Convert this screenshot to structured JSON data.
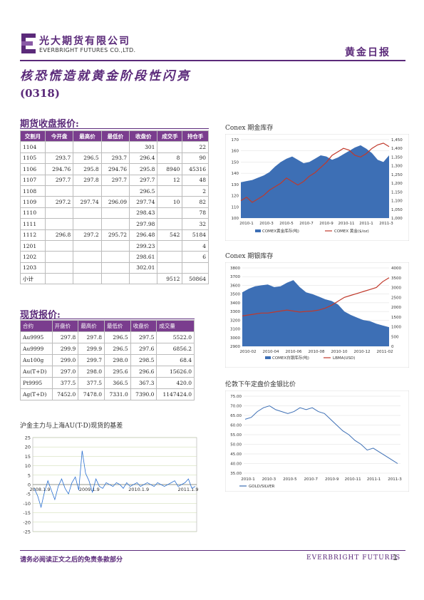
{
  "header": {
    "company_cn": "光大期货有限公司",
    "company_en": "EVERBRIGHT FUTURES CO.,LTD.",
    "report_name": "黄金日报",
    "colors": {
      "brand": "#5b2a7a",
      "table_head": "#7a3d8e"
    }
  },
  "title": "核恐慌造就黄金阶段性闪亮",
  "subtitle": "(0318)",
  "futures": {
    "title": "期货收盘报价:",
    "columns": [
      "交割月",
      "今开盘",
      "最高价",
      "最低价",
      "收盘价",
      "成交手",
      "持仓手"
    ],
    "rows": [
      [
        "1104",
        "",
        "",
        "",
        "301",
        "",
        "22"
      ],
      [
        "1105",
        "293.7",
        "296.5",
        "293.7",
        "296.4",
        "8",
        "90"
      ],
      [
        "1106",
        "294.76",
        "295.8",
        "294.76",
        "295.8",
        "8940",
        "45316"
      ],
      [
        "1107",
        "297.7",
        "297.8",
        "297.7",
        "297.7",
        "12",
        "48"
      ],
      [
        "1108",
        "",
        "",
        "",
        "296.5",
        "",
        "2"
      ],
      [
        "1109",
        "297.2",
        "297.74",
        "296.09",
        "297.74",
        "10",
        "82"
      ],
      [
        "1110",
        "",
        "",
        "",
        "298.43",
        "",
        "78"
      ],
      [
        "1111",
        "",
        "",
        "",
        "297.98",
        "",
        "32"
      ],
      [
        "1112",
        "296.8",
        "297.2",
        "295.72",
        "296.48",
        "542",
        "5184"
      ],
      [
        "1201",
        "",
        "",
        "",
        "299.23",
        "",
        "4"
      ],
      [
        "1202",
        "",
        "",
        "",
        "298.61",
        "",
        "6"
      ],
      [
        "1203",
        "",
        "",
        "",
        "302.01",
        "",
        ""
      ],
      [
        "小计",
        "",
        "",
        "",
        "",
        "9512",
        "50864"
      ]
    ]
  },
  "spot": {
    "title": "现货报价:",
    "columns": [
      "合约",
      "开盘价",
      "最高价",
      "最低价",
      "收盘价",
      "成交量"
    ],
    "rows": [
      [
        "Au9995",
        "297.8",
        "297.8",
        "296.5",
        "297.5",
        "5522.0"
      ],
      [
        "Au9999",
        "299.9",
        "299.9",
        "296.5",
        "297.6",
        "6856.2"
      ],
      [
        "Au100g",
        "299.0",
        "299.7",
        "298.0",
        "298.5",
        "68.4"
      ],
      [
        "Au(T+D)",
        "297.0",
        "298.0",
        "295.6",
        "296.6",
        "15626.0"
      ],
      [
        "Pt9995",
        "377.5",
        "377.5",
        "366.5",
        "367.3",
        "420.0"
      ],
      [
        "Ag(T+D)",
        "7452.0",
        "7478.0",
        "7331.0",
        "7390.0",
        "1147424.0"
      ]
    ]
  },
  "charts": {
    "basis_title": "沪金主力与上海AU(T-D)现货的基差",
    "comex_gold_title": "Conex 期金库存",
    "comex_silver_title": "Conex 期银库存",
    "gold_silver_title": "伦敦下午定盘价金银比价"
  },
  "chart_data": [
    {
      "type": "line",
      "title": "沪金主力与上海AU(T-D)现货的基差",
      "ylim": [
        -25,
        25
      ],
      "yticks": [
        "25",
        "20",
        "15",
        "10",
        "5",
        "0",
        "-5",
        "-10",
        "-15",
        "-20",
        "-25"
      ],
      "xticks": [
        "2008.1.9",
        "2009.1.9",
        "2010.1.9",
        "2011.1.9"
      ],
      "series": [
        {
          "values": [
            -2,
            -6,
            -12,
            -4,
            2,
            -3,
            -8,
            -1,
            3,
            -2,
            -5,
            1,
            4,
            -3,
            18,
            6,
            2,
            -4,
            3,
            -1,
            -2,
            1,
            0,
            -1,
            1,
            0,
            -2,
            1,
            -1,
            0,
            1,
            -1,
            0,
            1,
            0,
            -1,
            1,
            0,
            -1,
            0,
            1,
            2,
            -1,
            0,
            1,
            3,
            -2,
            -1
          ]
        }
      ]
    },
    {
      "type": "area",
      "title": "Conex 期金库存",
      "ylim_left": [
        100,
        170
      ],
      "ylim_right": [
        1000,
        1450
      ],
      "yticks_left": [
        "170",
        "160",
        "150",
        "140",
        "130",
        "120",
        "110",
        "100"
      ],
      "yticks_right": [
        "1,450",
        "1,400",
        "1,350",
        "1,300",
        "1,250",
        "1,200",
        "1,150",
        "1,100",
        "1,050",
        "1,000"
      ],
      "xticks": [
        "2010-1",
        "2010-3",
        "2010-5",
        "2010-7",
        "2010-9",
        "2010-11",
        "2011-1",
        "2011-3"
      ],
      "series": [
        {
          "name": "COMEX黄金库存(吨)",
          "values": [
            132,
            133,
            134,
            136,
            138,
            141,
            146,
            150,
            153,
            155,
            152,
            149,
            150,
            153,
            156,
            155,
            152,
            154,
            157,
            160,
            163,
            165,
            162,
            158,
            152,
            150,
            156
          ]
        },
        {
          "name": "COMEX 黄金($/oz)",
          "values": [
            1100,
            1120,
            1090,
            1110,
            1130,
            1160,
            1180,
            1200,
            1230,
            1210,
            1190,
            1210,
            1240,
            1260,
            1290,
            1320,
            1360,
            1380,
            1400,
            1390,
            1360,
            1350,
            1370,
            1400,
            1420,
            1430,
            1410
          ]
        }
      ]
    },
    {
      "type": "area",
      "title": "Conex 期银库存",
      "ylim_left": [
        2900,
        3800
      ],
      "ylim_right": [
        0,
        4000
      ],
      "yticks_left": [
        "3800",
        "3700",
        "3600",
        "3500",
        "3400",
        "3300",
        "3200",
        "3100",
        "3000",
        "2900"
      ],
      "yticks_right": [
        "4000",
        "3500",
        "3000",
        "2500",
        "2000",
        "1500",
        "1000",
        "500",
        "0"
      ],
      "xticks": [
        "2010-02",
        "2010-04",
        "2010-06",
        "2010-08",
        "2010-10",
        "2010-12",
        "2011-02"
      ],
      "series": [
        {
          "name": "COMEX白银库存(吨)",
          "values": [
            3520,
            3560,
            3590,
            3600,
            3610,
            3580,
            3590,
            3630,
            3660,
            3580,
            3520,
            3500,
            3470,
            3440,
            3420,
            3380,
            3300,
            3260,
            3230,
            3200,
            3190,
            3160,
            3140,
            3120
          ]
        },
        {
          "name": "LBMA(USD)",
          "values": [
            1550,
            1600,
            1650,
            1700,
            1700,
            1750,
            1800,
            1850,
            1800,
            1750,
            1780,
            1800,
            1850,
            1950,
            2100,
            2300,
            2500,
            2600,
            2700,
            2800,
            2900,
            3000,
            3300,
            3500
          ]
        }
      ]
    },
    {
      "type": "line",
      "title": "伦敦下午定盘价金银比价",
      "ylim": [
        35,
        75
      ],
      "yticks": [
        "75.00",
        "70.00",
        "65.00",
        "60.00",
        "55.00",
        "50.00",
        "45.00",
        "40.00",
        "35.00"
      ],
      "xticks": [
        "2010-1",
        "2010-3",
        "2010-5",
        "2010-7",
        "2010-9",
        "2010-11",
        "2011-1",
        "2011-3"
      ],
      "series": [
        {
          "name": "GOLD/SILVER",
          "values": [
            63,
            64,
            67,
            69,
            70,
            68,
            67,
            66,
            67,
            69,
            68,
            69,
            67,
            66,
            63,
            60,
            57,
            55,
            52,
            50,
            47,
            48,
            46,
            44,
            42,
            40
          ]
        }
      ]
    }
  ]
}
